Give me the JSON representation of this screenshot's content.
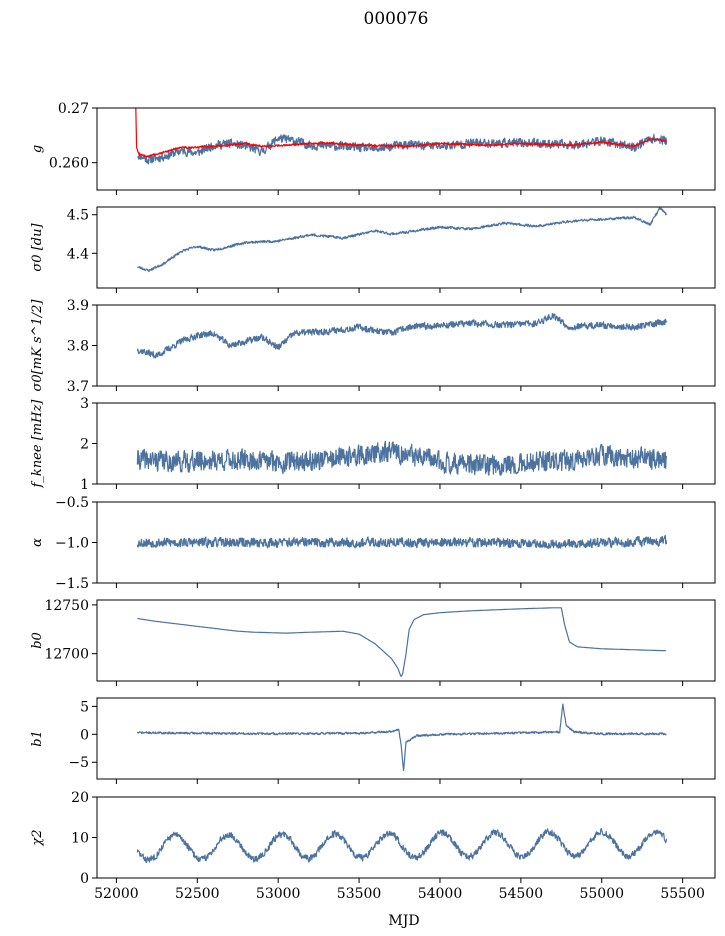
{
  "figure": {
    "title": "000076",
    "xlabel": "MJD"
  },
  "chart_data": [
    {
      "type": "line",
      "ylabel": "g",
      "ylim": [
        0.255,
        0.27
      ],
      "yticks": [
        0.26,
        0.27
      ],
      "ytick_labels": [
        "0.260",
        "0.27"
      ],
      "series": [
        {
          "color": "#4c72a0",
          "kind": "noisy",
          "seed": 11,
          "points": [
            [
              52130,
              0.2615
            ],
            [
              52200,
              0.2605
            ],
            [
              52300,
              0.2612
            ],
            [
              52400,
              0.2622
            ],
            [
              52500,
              0.2618
            ],
            [
              52600,
              0.2632
            ],
            [
              52700,
              0.2635
            ],
            [
              52800,
              0.263
            ],
            [
              52900,
              0.262
            ],
            [
              53000,
              0.2645
            ],
            [
              53100,
              0.264
            ],
            [
              53200,
              0.2632
            ],
            [
              53400,
              0.263
            ],
            [
              53600,
              0.2625
            ],
            [
              53750,
              0.2632
            ],
            [
              53800,
              0.2633
            ],
            [
              54000,
              0.263
            ],
            [
              54200,
              0.2636
            ],
            [
              54400,
              0.2636
            ],
            [
              54600,
              0.2636
            ],
            [
              54800,
              0.2632
            ],
            [
              55000,
              0.264
            ],
            [
              55200,
              0.2628
            ],
            [
              55300,
              0.2645
            ],
            [
              55400,
              0.264
            ]
          ],
          "noise": 0.0009
        },
        {
          "color": "#ff0000",
          "kind": "band",
          "seed": 5,
          "points": [
            [
              52120,
              0.27
            ],
            [
              52125,
              0.2628
            ],
            [
              52140,
              0.2615
            ],
            [
              52200,
              0.2612
            ],
            [
              52300,
              0.262
            ],
            [
              52400,
              0.2628
            ],
            [
              52500,
              0.2628
            ],
            [
              52700,
              0.2632
            ],
            [
              52800,
              0.2635
            ],
            [
              52900,
              0.263
            ],
            [
              53100,
              0.2633
            ],
            [
              53300,
              0.2636
            ],
            [
              53500,
              0.2632
            ],
            [
              53800,
              0.263
            ],
            [
              54000,
              0.2635
            ],
            [
              54300,
              0.2632
            ],
            [
              54500,
              0.2635
            ],
            [
              54800,
              0.2632
            ],
            [
              55000,
              0.2637
            ],
            [
              55200,
              0.263
            ],
            [
              55300,
              0.2644
            ],
            [
              55400,
              0.264
            ]
          ],
          "noise": 0.0002
        }
      ]
    },
    {
      "type": "line",
      "ylabel": "σ0 [du]",
      "ylim": [
        4.31,
        4.52
      ],
      "yticks": [
        4.4,
        4.5
      ],
      "ytick_labels": [
        "4.4",
        "4.5"
      ],
      "series": [
        {
          "color": "#4c72a0",
          "kind": "noisy",
          "seed": 23,
          "points": [
            [
              52130,
              4.365
            ],
            [
              52200,
              4.355
            ],
            [
              52300,
              4.375
            ],
            [
              52400,
              4.405
            ],
            [
              52500,
              4.418
            ],
            [
              52600,
              4.408
            ],
            [
              52800,
              4.428
            ],
            [
              53000,
              4.432
            ],
            [
              53200,
              4.448
            ],
            [
              53400,
              4.44
            ],
            [
              53600,
              4.458
            ],
            [
              53700,
              4.45
            ],
            [
              53800,
              4.455
            ],
            [
              54000,
              4.468
            ],
            [
              54200,
              4.463
            ],
            [
              54400,
              4.478
            ],
            [
              54600,
              4.47
            ],
            [
              54800,
              4.483
            ],
            [
              55000,
              4.488
            ],
            [
              55200,
              4.493
            ],
            [
              55300,
              4.475
            ],
            [
              55360,
              4.518
            ],
            [
              55400,
              4.5
            ]
          ],
          "noise": 0.0035
        }
      ]
    },
    {
      "type": "line",
      "ylabel": "σ0[mK s^1/2]",
      "ylim": [
        3.7,
        3.9
      ],
      "yticks": [
        3.7,
        3.8,
        3.9
      ],
      "ytick_labels": [
        "3.7",
        "3.8",
        "3.9"
      ],
      "series": [
        {
          "color": "#4c72a0",
          "kind": "noisy",
          "seed": 37,
          "points": [
            [
              52130,
              3.79
            ],
            [
              52250,
              3.775
            ],
            [
              52400,
              3.81
            ],
            [
              52500,
              3.825
            ],
            [
              52600,
              3.83
            ],
            [
              52700,
              3.8
            ],
            [
              52900,
              3.82
            ],
            [
              53000,
              3.795
            ],
            [
              53100,
              3.83
            ],
            [
              53300,
              3.835
            ],
            [
              53500,
              3.845
            ],
            [
              53700,
              3.83
            ],
            [
              53800,
              3.845
            ],
            [
              54000,
              3.85
            ],
            [
              54200,
              3.855
            ],
            [
              54400,
              3.85
            ],
            [
              54600,
              3.855
            ],
            [
              54700,
              3.875
            ],
            [
              54800,
              3.845
            ],
            [
              55000,
              3.85
            ],
            [
              55200,
              3.845
            ],
            [
              55400,
              3.86
            ]
          ],
          "noise": 0.009
        }
      ]
    },
    {
      "type": "line",
      "ylabel": "f_knee [mHz]",
      "ylim": [
        1,
        3
      ],
      "yticks": [
        1,
        2,
        3
      ],
      "ytick_labels": [
        "1",
        "2",
        "3"
      ],
      "series": [
        {
          "color": "#4c72a0",
          "kind": "noisy",
          "seed": 41,
          "points": [
            [
              52130,
              1.6
            ],
            [
              52400,
              1.55
            ],
            [
              52700,
              1.6
            ],
            [
              53000,
              1.55
            ],
            [
              53300,
              1.6
            ],
            [
              53600,
              1.75
            ],
            [
              53700,
              1.8
            ],
            [
              53800,
              1.7
            ],
            [
              54000,
              1.55
            ],
            [
              54300,
              1.45
            ],
            [
              54600,
              1.55
            ],
            [
              54800,
              1.55
            ],
            [
              55000,
              1.7
            ],
            [
              55200,
              1.65
            ],
            [
              55400,
              1.6
            ]
          ],
          "noise": 0.28
        }
      ]
    },
    {
      "type": "line",
      "ylabel": "α",
      "ylim": [
        -1.5,
        -0.5
      ],
      "yticks": [
        -1.5,
        -1.0,
        -0.5
      ],
      "ytick_labels": [
        "−1.5",
        "−1.0",
        "−0.5"
      ],
      "series": [
        {
          "color": "#4c72a0",
          "kind": "noisy",
          "seed": 53,
          "points": [
            [
              52130,
              -1.0
            ],
            [
              52800,
              -1.0
            ],
            [
              53500,
              -1.0
            ],
            [
              54200,
              -1.0
            ],
            [
              54780,
              -1.02
            ],
            [
              55400,
              -0.98
            ]
          ],
          "noise": 0.065
        }
      ]
    },
    {
      "type": "line",
      "ylabel": "b0",
      "ylim": [
        12672,
        12755
      ],
      "yticks": [
        12700,
        12750
      ],
      "ytick_labels": [
        "12700",
        "12750"
      ],
      "series": [
        {
          "color": "#4c72a0",
          "kind": "smooth",
          "seed": 61,
          "points": [
            [
              52130,
              12736
            ],
            [
              52250,
              12733
            ],
            [
              52500,
              12728
            ],
            [
              52750,
              12723
            ],
            [
              52850,
              12722
            ],
            [
              53050,
              12721
            ],
            [
              53200,
              12722
            ],
            [
              53400,
              12723
            ],
            [
              53500,
              12720
            ],
            [
              53600,
              12710
            ],
            [
              53700,
              12695
            ],
            [
              53740,
              12685
            ],
            [
              53760,
              12676
            ],
            [
              53770,
              12680
            ],
            [
              53790,
              12700
            ],
            [
              53810,
              12725
            ],
            [
              53840,
              12735
            ],
            [
              53900,
              12740
            ],
            [
              54000,
              12742
            ],
            [
              54200,
              12744
            ],
            [
              54500,
              12746
            ],
            [
              54700,
              12747
            ],
            [
              54750,
              12747
            ],
            [
              54770,
              12730
            ],
            [
              54800,
              12712
            ],
            [
              54850,
              12707
            ],
            [
              55000,
              12705
            ],
            [
              55200,
              12704
            ],
            [
              55400,
              12703
            ]
          ],
          "noise": 0.15
        }
      ]
    },
    {
      "type": "line",
      "ylabel": "b1",
      "ylim": [
        -8,
        6.5
      ],
      "yticks": [
        -5,
        0,
        5
      ],
      "ytick_labels": [
        "−5",
        "0",
        "5"
      ],
      "series": [
        {
          "color": "#4c72a0",
          "kind": "noisy",
          "seed": 71,
          "points": [
            [
              52130,
              0.3
            ],
            [
              52500,
              0.2
            ],
            [
              53000,
              0.1
            ],
            [
              53500,
              0.2
            ],
            [
              53700,
              0.5
            ],
            [
              53745,
              0.8
            ],
            [
              53760,
              -2
            ],
            [
              53775,
              -6.5
            ],
            [
              53790,
              -1.5
            ],
            [
              53850,
              -0.3
            ],
            [
              54000,
              0.0
            ],
            [
              54400,
              0.2
            ],
            [
              54740,
              0.4
            ],
            [
              54760,
              5.5
            ],
            [
              54780,
              1.5
            ],
            [
              54830,
              0.4
            ],
            [
              55000,
              0.1
            ],
            [
              55400,
              0.1
            ]
          ],
          "noise": 0.2
        }
      ]
    },
    {
      "type": "line",
      "ylabel": "χ2",
      "ylim": [
        0,
        20
      ],
      "yticks": [
        0,
        10,
        20
      ],
      "ytick_labels": [
        "0",
        "10",
        "20"
      ],
      "xlim": [
        51880,
        55700
      ],
      "xticks": [
        52000,
        52500,
        53000,
        53500,
        54000,
        54500,
        55000,
        55500
      ],
      "xtick_labels": [
        "52000",
        "52500",
        "53000",
        "53500",
        "54000",
        "54500",
        "55000",
        "55500"
      ],
      "series": [
        {
          "color": "#4c72a0",
          "kind": "seasonal",
          "seed": 83,
          "points": [
            [
              52130,
              7.5
            ],
            [
              55400,
              8.5
            ]
          ],
          "period": 330,
          "amplitude": 3.0,
          "phase": 52280,
          "noise": 0.9
        }
      ]
    }
  ]
}
